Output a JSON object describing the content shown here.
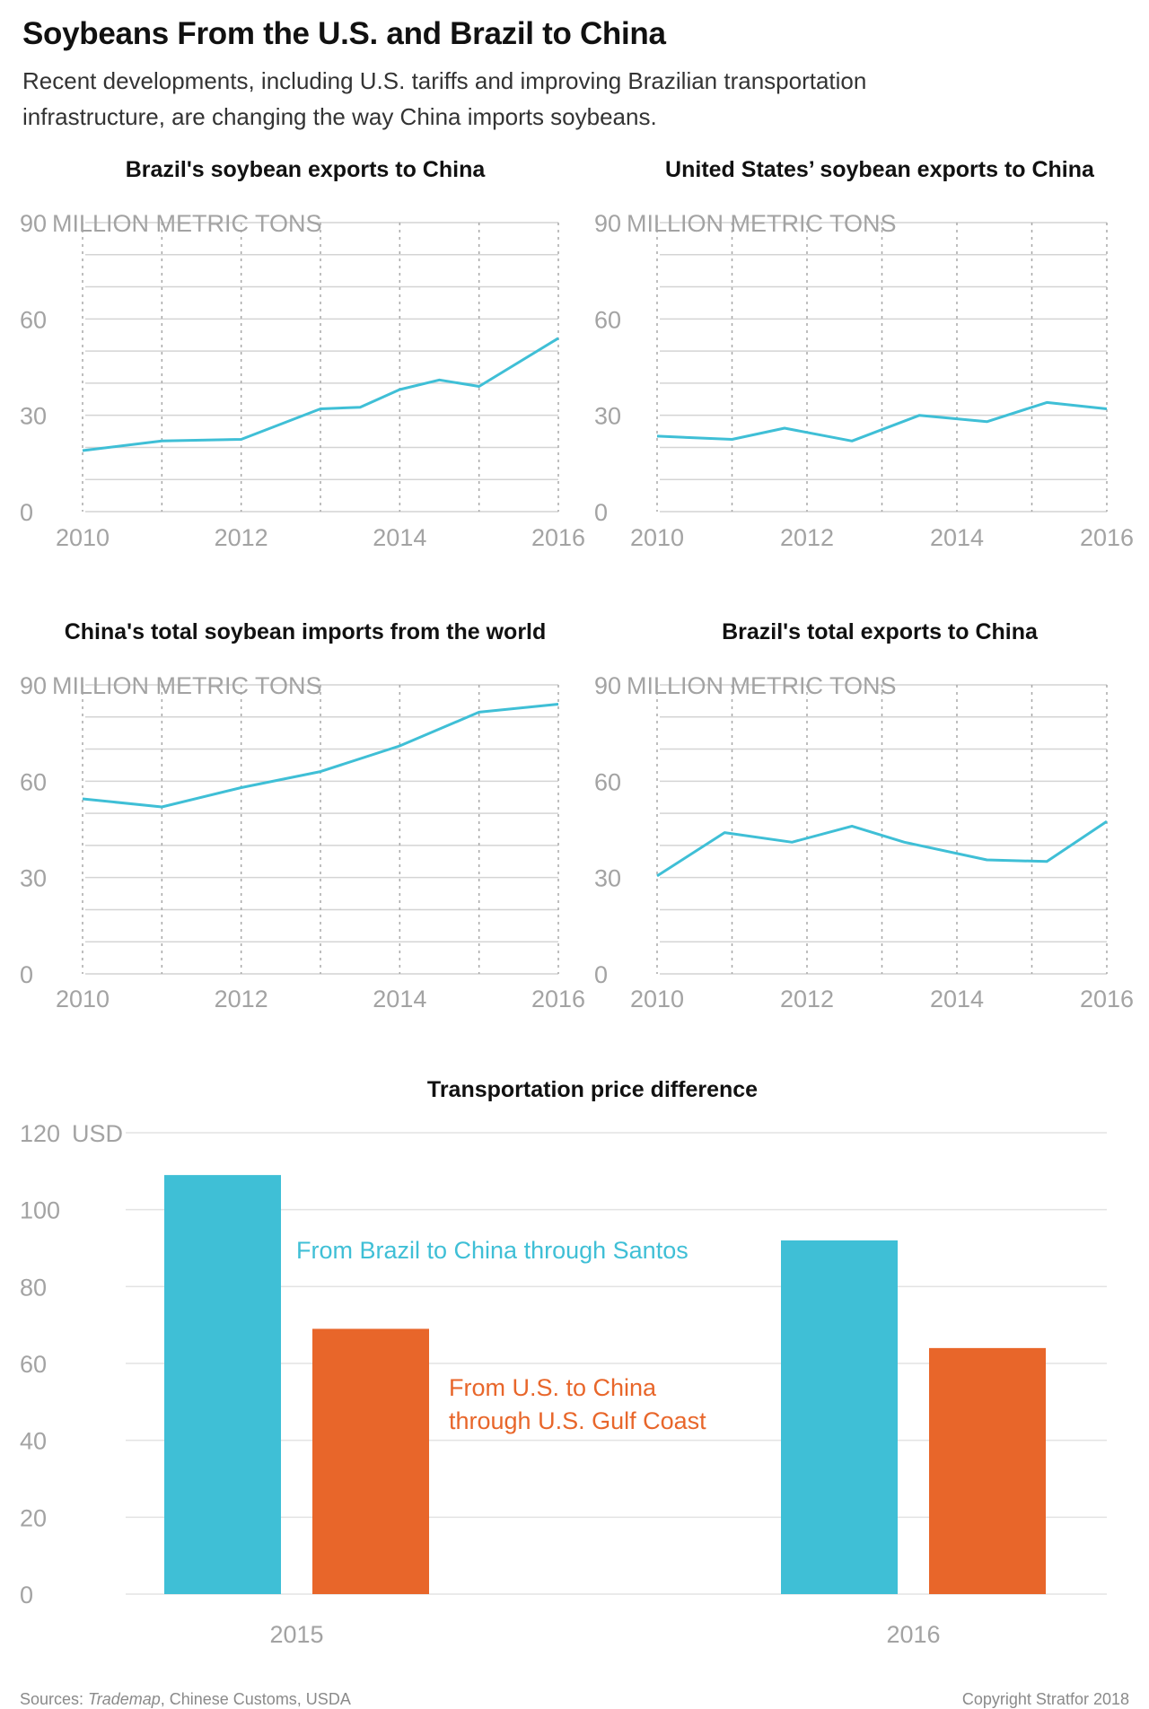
{
  "header": {
    "title": "Soybeans From the U.S. and Brazil to China",
    "subtitle": "Recent developments, including U.S. tariffs and improving Brazilian transportation infrastructure, are changing the way China imports soybeans."
  },
  "footer": {
    "sources_prefix": "Sources: ",
    "sources_italic": "Trademap",
    "sources_rest": ", Chinese Customs, USDA",
    "copyright": "Copyright Stratfor 2018"
  },
  "colors": {
    "teal": "#3fbfd6",
    "orange": "#e8662a",
    "grid": "#d4d4d4",
    "tick": "#a3a3a3"
  },
  "chart_data": [
    {
      "type": "line",
      "title": "Brazil's soybean exports to China",
      "ylabel": "MILLION METRIC TONS",
      "ylim": [
        0,
        90
      ],
      "yticks": [
        0,
        30,
        60,
        90
      ],
      "xlim": [
        2010,
        2016
      ],
      "xticks": [
        2010,
        2012,
        2014,
        2016
      ],
      "color": "#3fbfd6",
      "points": [
        [
          2010,
          19
        ],
        [
          2011,
          22
        ],
        [
          2012,
          22.5
        ],
        [
          2013,
          32
        ],
        [
          2013.5,
          32.5
        ],
        [
          2014,
          38
        ],
        [
          2014.5,
          41
        ],
        [
          2015,
          39
        ],
        [
          2016,
          54
        ]
      ]
    },
    {
      "type": "line",
      "title": "United States’ soybean exports to China",
      "ylabel": "MILLION METRIC TONS",
      "ylim": [
        0,
        90
      ],
      "yticks": [
        0,
        30,
        60,
        90
      ],
      "xlim": [
        2010,
        2016
      ],
      "xticks": [
        2010,
        2012,
        2014,
        2016
      ],
      "color": "#3fbfd6",
      "points": [
        [
          2010,
          23.5
        ],
        [
          2011,
          22.5
        ],
        [
          2011.7,
          26
        ],
        [
          2012.6,
          22
        ],
        [
          2013.5,
          30
        ],
        [
          2014.4,
          28
        ],
        [
          2015.2,
          34
        ],
        [
          2016,
          32
        ]
      ]
    },
    {
      "type": "line",
      "title": "China's total soybean imports from the world",
      "ylabel": "MILLION METRIC TONS",
      "ylim": [
        0,
        90
      ],
      "yticks": [
        0,
        30,
        60,
        90
      ],
      "xlim": [
        2010,
        2016
      ],
      "xticks": [
        2010,
        2012,
        2014,
        2016
      ],
      "color": "#3fbfd6",
      "points": [
        [
          2010,
          54.5
        ],
        [
          2011,
          52
        ],
        [
          2012,
          58
        ],
        [
          2013,
          63
        ],
        [
          2014,
          71
        ],
        [
          2015,
          81.5
        ],
        [
          2016,
          84
        ]
      ]
    },
    {
      "type": "line",
      "title": "Brazil's total exports to China",
      "ylabel": "MILLION METRIC TONS",
      "ylim": [
        0,
        90
      ],
      "yticks": [
        0,
        30,
        60,
        90
      ],
      "xlim": [
        2010,
        2016
      ],
      "xticks": [
        2010,
        2012,
        2014,
        2016
      ],
      "color": "#3fbfd6",
      "points": [
        [
          2010,
          30.5
        ],
        [
          2010.9,
          44
        ],
        [
          2011.8,
          41
        ],
        [
          2012.6,
          46
        ],
        [
          2013.3,
          41
        ],
        [
          2014.4,
          35.5
        ],
        [
          2015.2,
          35
        ],
        [
          2016,
          47.5
        ]
      ]
    },
    {
      "type": "bar",
      "title": "Transportation price difference",
      "ylabel": "USD",
      "ylim": [
        0,
        120
      ],
      "yticks": [
        0,
        20,
        40,
        60,
        80,
        100,
        120
      ],
      "categories": [
        "2015",
        "2016"
      ],
      "series": [
        {
          "name": "From Brazil to China through Santos",
          "color": "#3fbfd6",
          "values": [
            109,
            92
          ]
        },
        {
          "name_lines": [
            "From U.S. to China",
            "through U.S. Gulf Coast"
          ],
          "color": "#e8662a",
          "values": [
            69,
            64
          ]
        }
      ]
    }
  ]
}
